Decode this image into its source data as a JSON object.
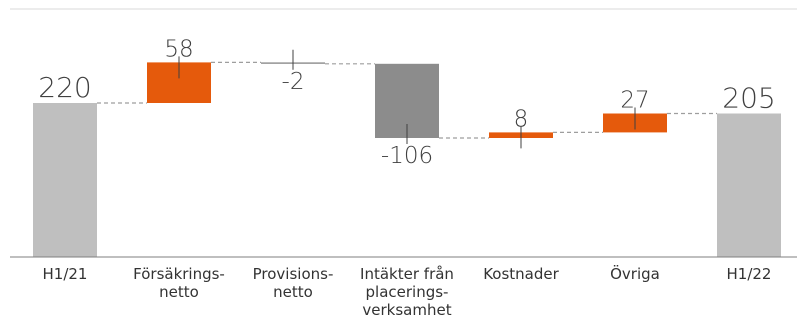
{
  "chart_data": {
    "type": "waterfall",
    "title": "",
    "xlabel": "",
    "ylabel": "",
    "ylim": [
      0,
      320
    ],
    "grid": false,
    "legend": "none",
    "categories": [
      [
        "H1/21"
      ],
      [
        "Försäkrings-",
        "netto"
      ],
      [
        "Provisions-",
        "netto"
      ],
      [
        "Intäkter  från",
        "placerings-",
        "verksamhet"
      ],
      [
        "Kostnader"
      ],
      [
        "Övriga"
      ],
      [
        "H1/22"
      ]
    ],
    "values": [
      220,
      58,
      -2,
      -106,
      8,
      27,
      205
    ],
    "labels": [
      "220",
      "58",
      "-2",
      "-106",
      "8",
      "27",
      "205"
    ],
    "kinds": [
      "total",
      "delta",
      "delta",
      "delta",
      "delta",
      "delta",
      "total"
    ],
    "colors": {
      "total": "#bfbfbf",
      "increase": "#e55a0c",
      "decrease": "#8c8c8c",
      "connector": "#9e9e9e",
      "axis": "#7f7f7f",
      "tick": "#404040"
    }
  }
}
